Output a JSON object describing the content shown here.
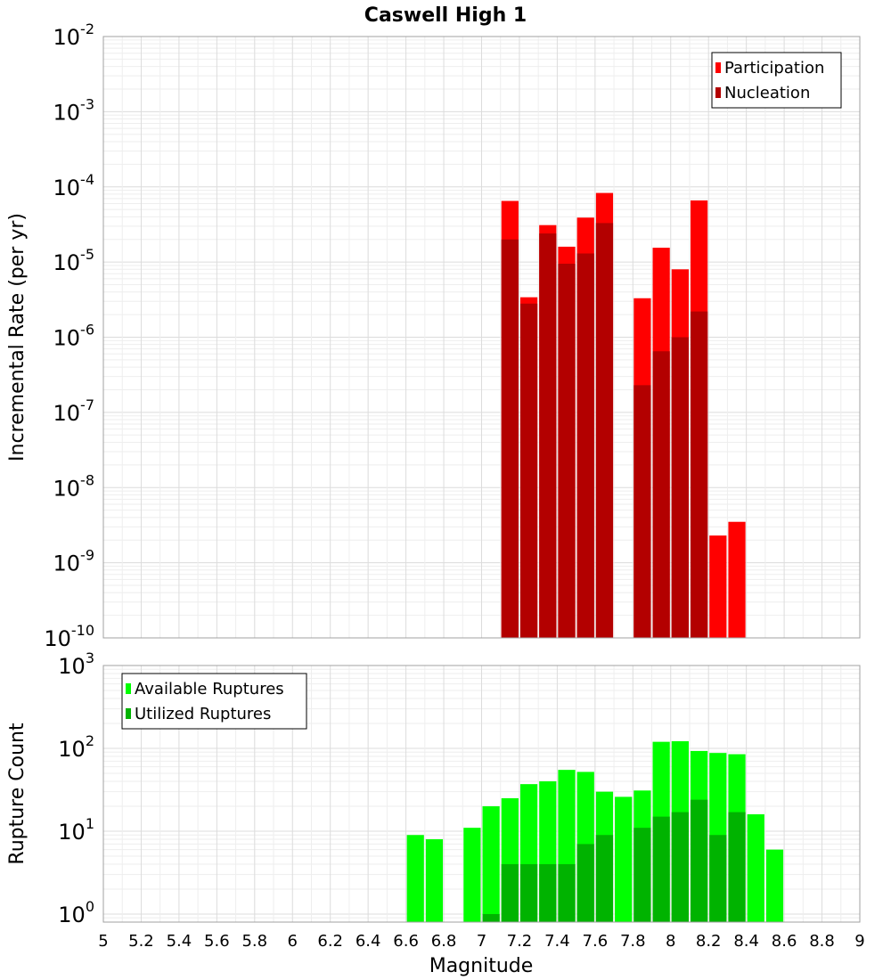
{
  "chart_data": {
    "title": "Caswell High 1",
    "xlabel": "Magnitude",
    "x_ticks": [
      "5",
      "5.2",
      "5.4",
      "5.6",
      "5.8",
      "6",
      "6.2",
      "6.4",
      "6.6",
      "6.8",
      "7",
      "7.2",
      "7.4",
      "7.6",
      "7.8",
      "8",
      "8.2",
      "8.4",
      "8.6",
      "8.8",
      "9"
    ],
    "xlim": [
      5,
      9
    ],
    "bin_width": 0.1,
    "panels": [
      {
        "type": "bar",
        "ylabel": "Incremental Rate (per yr)",
        "yscale": "log",
        "ylim": [
          1e-10,
          0.01
        ],
        "y_ticks": [
          {
            "base": "10",
            "exp": "-10"
          },
          {
            "base": "10",
            "exp": "-9"
          },
          {
            "base": "10",
            "exp": "-8"
          },
          {
            "base": "10",
            "exp": "-7"
          },
          {
            "base": "10",
            "exp": "-6"
          },
          {
            "base": "10",
            "exp": "-5"
          },
          {
            "base": "10",
            "exp": "-4"
          },
          {
            "base": "10",
            "exp": "-3"
          },
          {
            "base": "10",
            "exp": "-2"
          }
        ],
        "legend_position": "top-right",
        "series": [
          {
            "name": "Participation",
            "color": "#ff0000",
            "x": [
              7.15,
              7.25,
              7.35,
              7.45,
              7.55,
              7.65,
              7.85,
              7.95,
              8.05,
              8.15,
              8.25,
              8.35
            ],
            "values": [
              6.5e-05,
              3.4e-06,
              3.1e-05,
              1.6e-05,
              3.9e-05,
              8.3e-05,
              3.3e-06,
              1.55e-05,
              8e-06,
              6.6e-05,
              2.3e-09,
              3.5e-09
            ]
          },
          {
            "name": "Nucleation",
            "color": "#b30000",
            "x": [
              7.15,
              7.25,
              7.35,
              7.45,
              7.55,
              7.65,
              7.85,
              7.95,
              8.05,
              8.15
            ],
            "values": [
              2e-05,
              2.8e-06,
              2.4e-05,
              9.5e-06,
              1.3e-05,
              3.3e-05,
              2.3e-07,
              6.5e-07,
              1e-06,
              2.2e-06
            ]
          }
        ]
      },
      {
        "type": "bar",
        "ylabel": "Rupture Count",
        "yscale": "log",
        "ylim": [
          0.8,
          1000
        ],
        "y_ticks": [
          {
            "base": "10",
            "exp": "0",
            "value": 1
          },
          {
            "base": "10",
            "exp": "1",
            "value": 10
          },
          {
            "base": "10",
            "exp": "2",
            "value": 100
          },
          {
            "base": "10",
            "exp": "3",
            "value": 1000
          }
        ],
        "legend_position": "top-left",
        "series": [
          {
            "name": "Available Ruptures",
            "color": "#00ff00",
            "x": [
              6.65,
              6.75,
              6.95,
              7.05,
              7.15,
              7.25,
              7.35,
              7.45,
              7.55,
              7.65,
              7.75,
              7.85,
              7.95,
              8.05,
              8.15,
              8.25,
              8.35,
              8.45,
              8.55
            ],
            "values": [
              9,
              8,
              11,
              20,
              25,
              37,
              40,
              55,
              52,
              30,
              26,
              31,
              120,
              122,
              93,
              88,
              85,
              16,
              6
            ]
          },
          {
            "name": "Utilized Ruptures",
            "color": "#00b300",
            "x": [
              7.05,
              7.15,
              7.25,
              7.35,
              7.45,
              7.55,
              7.65,
              7.85,
              7.95,
              8.05,
              8.15,
              8.25,
              8.35
            ],
            "values": [
              1,
              4,
              4,
              4,
              4,
              7,
              9,
              11,
              15,
              17,
              24,
              9,
              17
            ]
          }
        ]
      }
    ]
  }
}
